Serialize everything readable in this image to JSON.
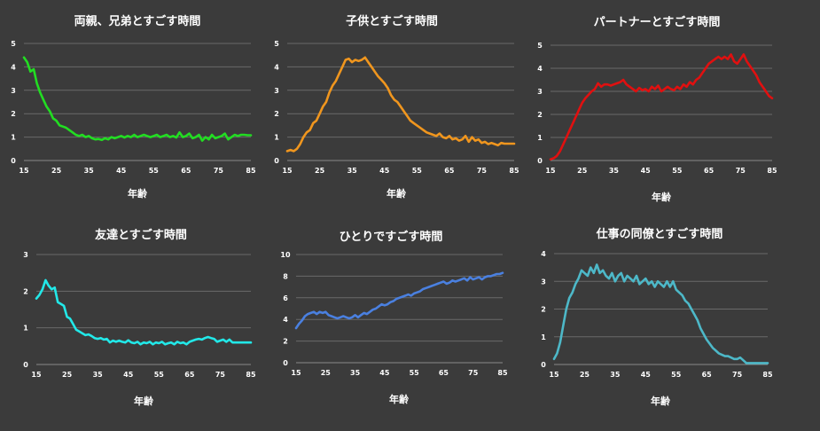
{
  "chart_data": [
    {
      "type": "line",
      "title": "両親、兄弟とすごす時間",
      "xlabel": "年齢",
      "ylabel": "",
      "xlim": [
        15,
        85
      ],
      "ylim": [
        0,
        5
      ],
      "yticks": [
        0,
        1,
        2,
        3,
        4,
        5
      ],
      "xticks": [
        15,
        25,
        35,
        45,
        55,
        65,
        75,
        85
      ],
      "color": "#22dd22",
      "series": [
        {
          "name": "両親、兄弟",
          "x": [
            15,
            16,
            17,
            18,
            19,
            20,
            21,
            22,
            23,
            24,
            25,
            26,
            27,
            28,
            29,
            30,
            31,
            32,
            33,
            34,
            35,
            36,
            37,
            38,
            39,
            40,
            41,
            42,
            43,
            44,
            45,
            46,
            47,
            48,
            49,
            50,
            51,
            52,
            53,
            54,
            55,
            56,
            57,
            58,
            59,
            60,
            61,
            62,
            63,
            64,
            65,
            66,
            67,
            68,
            69,
            70,
            71,
            72,
            73,
            74,
            75,
            76,
            77,
            78,
            79,
            80,
            81,
            82,
            83,
            84,
            85
          ],
          "values": [
            4.4,
            4.2,
            3.8,
            3.9,
            3.3,
            2.9,
            2.6,
            2.3,
            2.1,
            1.8,
            1.7,
            1.5,
            1.45,
            1.4,
            1.3,
            1.2,
            1.1,
            1.05,
            1.1,
            1.0,
            1.05,
            0.95,
            0.9,
            0.92,
            0.88,
            0.95,
            0.9,
            1.0,
            0.95,
            1.0,
            1.05,
            0.98,
            1.05,
            1.0,
            1.1,
            1.0,
            1.05,
            1.1,
            1.05,
            1.0,
            1.05,
            1.1,
            1.0,
            1.05,
            1.1,
            1.0,
            1.05,
            0.98,
            1.2,
            1.0,
            1.05,
            1.15,
            0.95,
            1.0,
            1.1,
            0.85,
            1.0,
            0.9,
            1.1,
            0.95,
            1.0,
            1.05,
            1.15,
            0.9,
            1.0,
            1.1,
            1.05,
            1.1,
            1.1,
            1.08,
            1.08
          ]
        }
      ]
    },
    {
      "type": "line",
      "title": "子供とすごす時間",
      "xlabel": "年齢",
      "ylabel": "",
      "xlim": [
        15,
        85
      ],
      "ylim": [
        0,
        5
      ],
      "yticks": [
        0,
        1,
        2,
        3,
        4,
        5
      ],
      "xticks": [
        15,
        25,
        35,
        45,
        55,
        65,
        75,
        85
      ],
      "color": "#f0961e",
      "series": [
        {
          "name": "子供",
          "x": [
            15,
            16,
            17,
            18,
            19,
            20,
            21,
            22,
            23,
            24,
            25,
            26,
            27,
            28,
            29,
            30,
            31,
            32,
            33,
            34,
            35,
            36,
            37,
            38,
            39,
            40,
            41,
            42,
            43,
            44,
            45,
            46,
            47,
            48,
            49,
            50,
            51,
            52,
            53,
            54,
            55,
            56,
            57,
            58,
            59,
            60,
            61,
            62,
            63,
            64,
            65,
            66,
            67,
            68,
            69,
            70,
            71,
            72,
            73,
            74,
            75,
            76,
            77,
            78,
            79,
            80,
            81,
            82,
            83,
            84,
            85
          ],
          "values": [
            0.4,
            0.45,
            0.4,
            0.5,
            0.7,
            1.0,
            1.2,
            1.3,
            1.6,
            1.7,
            2.0,
            2.3,
            2.5,
            2.9,
            3.2,
            3.4,
            3.7,
            4.0,
            4.3,
            4.35,
            4.2,
            4.3,
            4.25,
            4.3,
            4.4,
            4.2,
            4.0,
            3.8,
            3.6,
            3.45,
            3.3,
            3.1,
            2.8,
            2.6,
            2.5,
            2.3,
            2.1,
            1.9,
            1.7,
            1.6,
            1.5,
            1.4,
            1.3,
            1.2,
            1.15,
            1.1,
            1.05,
            1.15,
            1.0,
            0.95,
            1.05,
            0.9,
            0.95,
            0.85,
            0.9,
            1.05,
            0.8,
            1.0,
            0.85,
            0.9,
            0.75,
            0.8,
            0.7,
            0.75,
            0.7,
            0.65,
            0.75,
            0.72,
            0.72,
            0.72,
            0.72
          ]
        }
      ]
    },
    {
      "type": "line",
      "title": "パートナーとすごす時間",
      "xlabel": "年齢",
      "ylabel": "",
      "xlim": [
        15,
        85
      ],
      "ylim": [
        0,
        5
      ],
      "yticks": [
        0,
        1,
        2,
        3,
        4,
        5
      ],
      "xticks": [
        15,
        25,
        35,
        45,
        55,
        65,
        75,
        85
      ],
      "color": "#e01010",
      "series": [
        {
          "name": "パートナー",
          "x": [
            15,
            16,
            17,
            18,
            19,
            20,
            21,
            22,
            23,
            24,
            25,
            26,
            27,
            28,
            29,
            30,
            31,
            32,
            33,
            34,
            35,
            36,
            37,
            38,
            39,
            40,
            41,
            42,
            43,
            44,
            45,
            46,
            47,
            48,
            49,
            50,
            51,
            52,
            53,
            54,
            55,
            56,
            57,
            58,
            59,
            60,
            61,
            62,
            63,
            64,
            65,
            66,
            67,
            68,
            69,
            70,
            71,
            72,
            73,
            74,
            75,
            76,
            77,
            78,
            79,
            80,
            81,
            82,
            83,
            84,
            85
          ],
          "values": [
            0.05,
            0.1,
            0.2,
            0.4,
            0.7,
            1.0,
            1.3,
            1.6,
            1.9,
            2.2,
            2.5,
            2.7,
            2.85,
            3.0,
            3.1,
            3.35,
            3.2,
            3.3,
            3.3,
            3.25,
            3.3,
            3.35,
            3.4,
            3.5,
            3.3,
            3.2,
            3.1,
            3.0,
            3.15,
            3.05,
            3.1,
            3.0,
            3.2,
            3.1,
            3.25,
            3.0,
            3.1,
            3.2,
            3.1,
            3.05,
            3.2,
            3.1,
            3.3,
            3.2,
            3.4,
            3.3,
            3.5,
            3.6,
            3.8,
            4.0,
            4.2,
            4.3,
            4.4,
            4.5,
            4.4,
            4.5,
            4.4,
            4.6,
            4.3,
            4.2,
            4.4,
            4.6,
            4.3,
            4.1,
            3.9,
            3.7,
            3.4,
            3.2,
            3.0,
            2.8,
            2.7
          ]
        }
      ]
    },
    {
      "type": "line",
      "title": "友達とすごす時間",
      "xlabel": "年齢",
      "ylabel": "",
      "xlim": [
        15,
        85
      ],
      "ylim": [
        0,
        3
      ],
      "yticks": [
        0,
        1,
        2,
        3
      ],
      "xticks": [
        15,
        25,
        35,
        45,
        55,
        65,
        75,
        85
      ],
      "color": "#22e8e8",
      "series": [
        {
          "name": "友達",
          "x": [
            15,
            16,
            17,
            18,
            19,
            20,
            21,
            22,
            23,
            24,
            25,
            26,
            27,
            28,
            29,
            30,
            31,
            32,
            33,
            34,
            35,
            36,
            37,
            38,
            39,
            40,
            41,
            42,
            43,
            44,
            45,
            46,
            47,
            48,
            49,
            50,
            51,
            52,
            53,
            54,
            55,
            56,
            57,
            58,
            59,
            60,
            61,
            62,
            63,
            64,
            65,
            66,
            67,
            68,
            69,
            70,
            71,
            72,
            73,
            74,
            75,
            76,
            77,
            78,
            79,
            80,
            81,
            82,
            83,
            84,
            85
          ],
          "values": [
            1.8,
            1.9,
            2.05,
            2.3,
            2.15,
            2.05,
            2.1,
            1.7,
            1.65,
            1.6,
            1.3,
            1.25,
            1.1,
            0.95,
            0.9,
            0.85,
            0.8,
            0.82,
            0.78,
            0.72,
            0.7,
            0.72,
            0.68,
            0.7,
            0.6,
            0.65,
            0.62,
            0.65,
            0.62,
            0.6,
            0.66,
            0.6,
            0.58,
            0.62,
            0.55,
            0.6,
            0.58,
            0.62,
            0.55,
            0.6,
            0.58,
            0.62,
            0.55,
            0.58,
            0.6,
            0.55,
            0.62,
            0.58,
            0.6,
            0.55,
            0.62,
            0.65,
            0.68,
            0.7,
            0.68,
            0.72,
            0.75,
            0.72,
            0.7,
            0.62,
            0.65,
            0.68,
            0.62,
            0.68,
            0.6,
            0.6,
            0.6,
            0.6,
            0.6,
            0.6,
            0.6
          ]
        }
      ]
    },
    {
      "type": "line",
      "title": "ひとりですごす時間",
      "xlabel": "年齢",
      "ylabel": "",
      "xlim": [
        15,
        85
      ],
      "ylim": [
        0,
        10
      ],
      "yticks": [
        0,
        2,
        4,
        6,
        8,
        10
      ],
      "xticks": [
        15,
        25,
        35,
        45,
        55,
        65,
        75,
        85
      ],
      "color": "#4a80e0",
      "series": [
        {
          "name": "ひとり",
          "x": [
            15,
            16,
            17,
            18,
            19,
            20,
            21,
            22,
            23,
            24,
            25,
            26,
            27,
            28,
            29,
            30,
            31,
            32,
            33,
            34,
            35,
            36,
            37,
            38,
            39,
            40,
            41,
            42,
            43,
            44,
            45,
            46,
            47,
            48,
            49,
            50,
            51,
            52,
            53,
            54,
            55,
            56,
            57,
            58,
            59,
            60,
            61,
            62,
            63,
            64,
            65,
            66,
            67,
            68,
            69,
            70,
            71,
            72,
            73,
            74,
            75,
            76,
            77,
            78,
            79,
            80,
            81,
            82,
            83,
            84,
            85
          ],
          "values": [
            3.2,
            3.6,
            3.9,
            4.3,
            4.5,
            4.6,
            4.7,
            4.5,
            4.7,
            4.6,
            4.7,
            4.4,
            4.3,
            4.2,
            4.1,
            4.2,
            4.3,
            4.2,
            4.1,
            4.2,
            4.4,
            4.2,
            4.4,
            4.6,
            4.5,
            4.7,
            4.9,
            5.0,
            5.2,
            5.4,
            5.3,
            5.4,
            5.6,
            5.7,
            5.9,
            6.0,
            6.1,
            6.2,
            6.3,
            6.2,
            6.4,
            6.5,
            6.6,
            6.8,
            6.9,
            7.0,
            7.1,
            7.2,
            7.3,
            7.4,
            7.5,
            7.3,
            7.4,
            7.6,
            7.5,
            7.6,
            7.7,
            7.8,
            7.6,
            7.9,
            7.7,
            7.8,
            7.9,
            7.7,
            7.9,
            8.0,
            8.0,
            8.1,
            8.2,
            8.2,
            8.3
          ]
        }
      ]
    },
    {
      "type": "line",
      "title": "仕事の同僚とすごす時間",
      "xlabel": "年齢",
      "ylabel": "",
      "xlim": [
        15,
        85
      ],
      "ylim": [
        0,
        4
      ],
      "yticks": [
        0,
        1,
        2,
        3,
        4
      ],
      "xticks": [
        15,
        25,
        35,
        45,
        55,
        65,
        75,
        85
      ],
      "color": "#4db8c8",
      "series": [
        {
          "name": "仕事の同僚",
          "x": [
            15,
            16,
            17,
            18,
            19,
            20,
            21,
            22,
            23,
            24,
            25,
            26,
            27,
            28,
            29,
            30,
            31,
            32,
            33,
            34,
            35,
            36,
            37,
            38,
            39,
            40,
            41,
            42,
            43,
            44,
            45,
            46,
            47,
            48,
            49,
            50,
            51,
            52,
            53,
            54,
            55,
            56,
            57,
            58,
            59,
            60,
            61,
            62,
            63,
            64,
            65,
            66,
            67,
            68,
            69,
            70,
            71,
            72,
            73,
            74,
            75,
            76,
            77,
            78,
            79,
            80,
            81,
            82,
            83,
            84,
            85
          ],
          "values": [
            0.2,
            0.4,
            0.8,
            1.4,
            2.0,
            2.4,
            2.6,
            2.9,
            3.1,
            3.4,
            3.3,
            3.2,
            3.5,
            3.3,
            3.6,
            3.3,
            3.4,
            3.2,
            3.1,
            3.3,
            3.0,
            3.2,
            3.3,
            3.0,
            3.2,
            3.1,
            3.0,
            3.2,
            2.9,
            3.0,
            3.1,
            2.9,
            3.0,
            2.8,
            3.0,
            2.9,
            2.8,
            3.0,
            2.8,
            3.0,
            2.7,
            2.6,
            2.5,
            2.3,
            2.2,
            2.0,
            1.8,
            1.6,
            1.3,
            1.1,
            0.9,
            0.75,
            0.6,
            0.5,
            0.4,
            0.35,
            0.3,
            0.3,
            0.25,
            0.2,
            0.2,
            0.25,
            0.15,
            0.05,
            0.05,
            0.05,
            0.05,
            0.05,
            0.05,
            0.05,
            0.05
          ]
        }
      ]
    }
  ]
}
